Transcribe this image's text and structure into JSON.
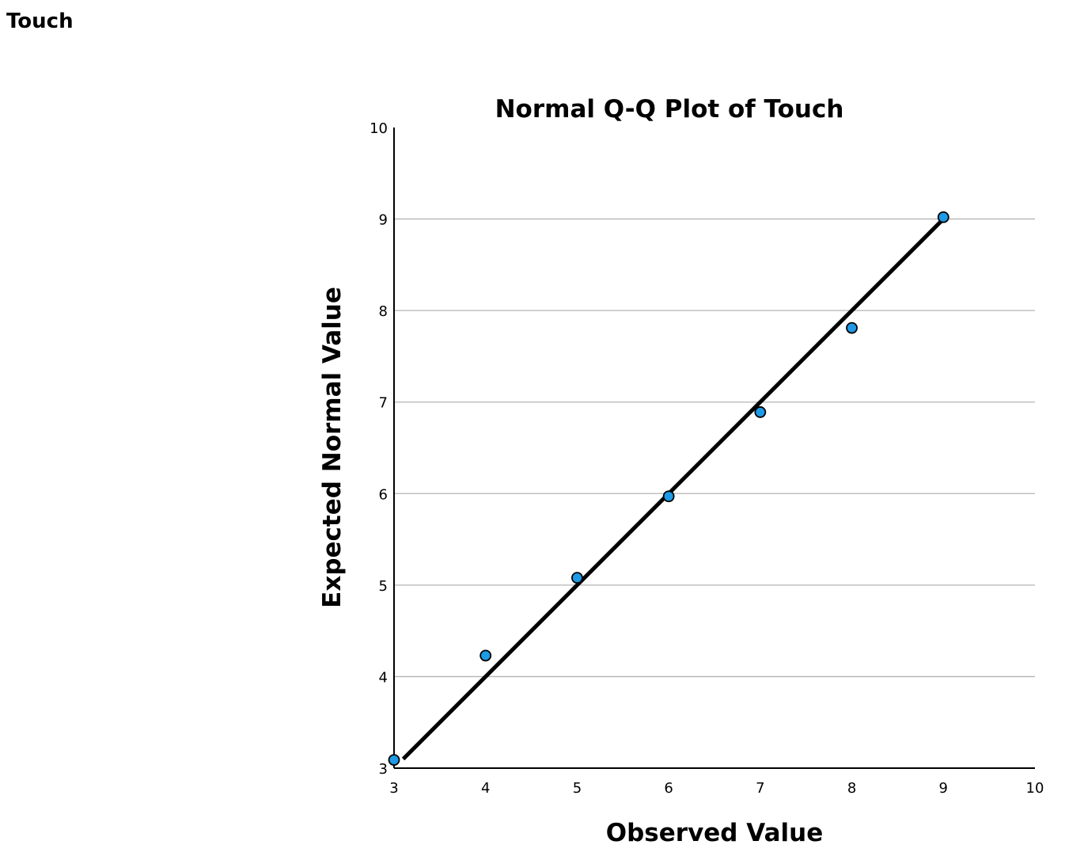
{
  "heading": "Touch",
  "chart_data": {
    "type": "scatter",
    "title": "Normal Q-Q Plot of Touch",
    "xlabel": "Observed Value",
    "ylabel": "Expected Normal Value",
    "xlim": [
      3,
      10
    ],
    "ylim": [
      3,
      10
    ],
    "x_ticks": [
      3,
      4,
      5,
      6,
      7,
      8,
      9,
      10
    ],
    "y_ticks": [
      3,
      4,
      5,
      6,
      7,
      8,
      9,
      10
    ],
    "horizontal_grid": true,
    "vertical_grid": false,
    "points": [
      {
        "x": 3,
        "y": 3.09
      },
      {
        "x": 4,
        "y": 4.23
      },
      {
        "x": 5,
        "y": 5.08
      },
      {
        "x": 6,
        "y": 5.97
      },
      {
        "x": 7,
        "y": 6.89
      },
      {
        "x": 8,
        "y": 7.81
      },
      {
        "x": 9,
        "y": 9.02
      }
    ],
    "reference_line": {
      "from": [
        3.1,
        3.1
      ],
      "to": [
        9.0,
        9.0
      ]
    },
    "colors": {
      "points": "#1e9ae6",
      "line": "#000000",
      "grid": "#b4b4b4"
    }
  }
}
